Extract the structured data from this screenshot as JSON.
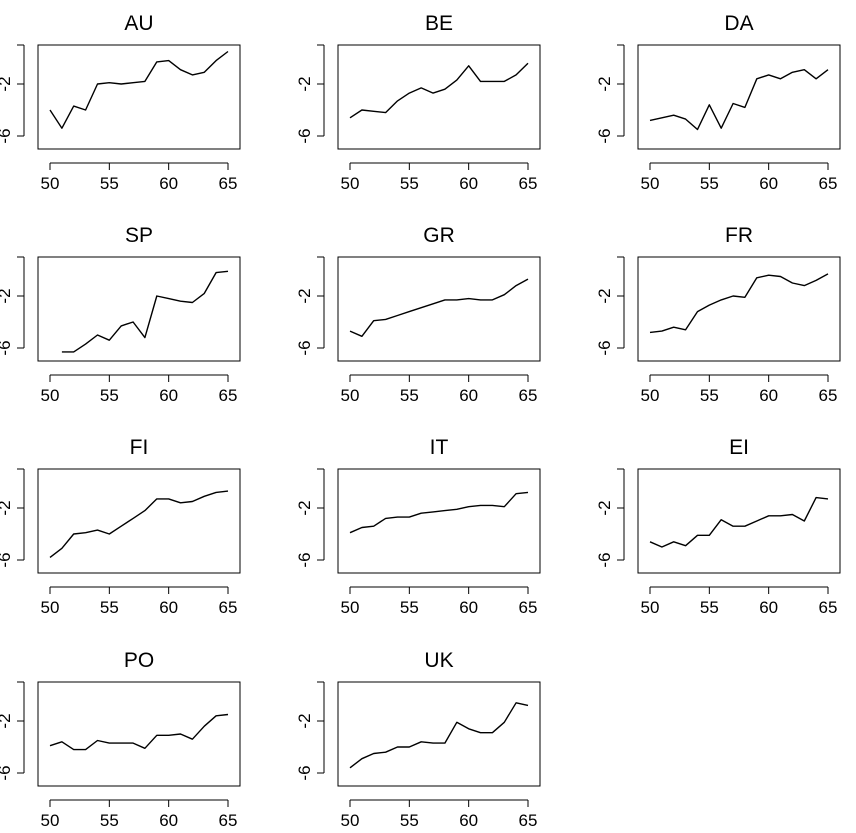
{
  "chart_data": [
    {
      "type": "line",
      "title": "AU",
      "xlim": [
        50,
        65
      ],
      "ylim": [
        -7,
        1
      ],
      "xticks": [
        50,
        55,
        60,
        65
      ],
      "yticks": [
        -6,
        -2
      ],
      "x": [
        50,
        51,
        52,
        53,
        54,
        55,
        56,
        57,
        58,
        59,
        60,
        61,
        62,
        63,
        64,
        65
      ],
      "y": [
        -4.0,
        -5.4,
        -3.7,
        -4.0,
        -2.0,
        -1.9,
        -2.0,
        -1.9,
        -1.8,
        -0.3,
        -0.2,
        -0.9,
        -1.3,
        -1.1,
        -0.2,
        0.5
      ]
    },
    {
      "type": "line",
      "title": "BE",
      "xlim": [
        50,
        65
      ],
      "ylim": [
        -7,
        1
      ],
      "xticks": [
        50,
        55,
        60,
        65
      ],
      "yticks": [
        -6,
        -2
      ],
      "x": [
        50,
        51,
        52,
        53,
        54,
        55,
        56,
        57,
        58,
        59,
        60,
        61,
        62,
        63,
        64,
        65
      ],
      "y": [
        -4.6,
        -4.0,
        -4.1,
        -4.2,
        -3.3,
        -2.7,
        -2.3,
        -2.7,
        -2.4,
        -1.7,
        -0.6,
        -1.8,
        -1.8,
        -1.8,
        -1.3,
        -0.4
      ]
    },
    {
      "type": "line",
      "title": "DA",
      "xlim": [
        50,
        65
      ],
      "ylim": [
        -7,
        1
      ],
      "xticks": [
        50,
        55,
        60,
        65
      ],
      "yticks": [
        -6,
        -2
      ],
      "x": [
        50,
        51,
        52,
        53,
        54,
        55,
        56,
        57,
        58,
        59,
        60,
        61,
        62,
        63,
        64,
        65
      ],
      "y": [
        -4.8,
        -4.6,
        -4.4,
        -4.7,
        -5.5,
        -3.6,
        -5.4,
        -3.5,
        -3.8,
        -1.6,
        -1.3,
        -1.6,
        -1.1,
        -0.9,
        -1.6,
        -0.9
      ]
    },
    {
      "type": "line",
      "title": "SP",
      "xlim": [
        50,
        65
      ],
      "ylim": [
        -7,
        1
      ],
      "xticks": [
        50,
        55,
        60,
        65
      ],
      "yticks": [
        -6,
        -2
      ],
      "x": [
        51,
        52,
        53,
        54,
        55,
        56,
        57,
        58,
        59,
        60,
        61,
        62,
        63,
        64,
        65
      ],
      "y": [
        -6.3,
        -6.3,
        -5.7,
        -5.0,
        -5.4,
        -4.3,
        -4.0,
        -5.2,
        -2.0,
        -2.2,
        -2.4,
        -2.5,
        -1.8,
        -0.2,
        -0.1
      ]
    },
    {
      "type": "line",
      "title": "GR",
      "xlim": [
        50,
        65
      ],
      "ylim": [
        -7,
        1
      ],
      "xticks": [
        50,
        55,
        60,
        65
      ],
      "yticks": [
        -6,
        -2
      ],
      "x": [
        50,
        51,
        52,
        53,
        54,
        55,
        56,
        57,
        58,
        59,
        60,
        61,
        62,
        63,
        64,
        65
      ],
      "y": [
        -4.7,
        -5.1,
        -3.9,
        -3.8,
        -3.5,
        -3.2,
        -2.9,
        -2.6,
        -2.3,
        -2.3,
        -2.2,
        -2.3,
        -2.3,
        -1.9,
        -1.2,
        -0.7
      ]
    },
    {
      "type": "line",
      "title": "FR",
      "xlim": [
        50,
        65
      ],
      "ylim": [
        -7,
        1
      ],
      "xticks": [
        50,
        55,
        60,
        65
      ],
      "yticks": [
        -6,
        -2
      ],
      "x": [
        50,
        51,
        52,
        53,
        54,
        55,
        56,
        57,
        58,
        59,
        60,
        61,
        62,
        63,
        64,
        65
      ],
      "y": [
        -4.8,
        -4.7,
        -4.4,
        -4.6,
        -3.2,
        -2.7,
        -2.3,
        -2.0,
        -2.1,
        -0.6,
        -0.4,
        -0.5,
        -1.0,
        -1.2,
        -0.8,
        -0.3
      ]
    },
    {
      "type": "line",
      "title": "FI",
      "xlim": [
        50,
        65
      ],
      "ylim": [
        -7,
        1
      ],
      "xticks": [
        50,
        55,
        60,
        65
      ],
      "yticks": [
        -6,
        -2
      ],
      "x": [
        50,
        51,
        52,
        53,
        54,
        55,
        56,
        57,
        58,
        59,
        60,
        61,
        62,
        63,
        64,
        65
      ],
      "y": [
        -5.8,
        -5.1,
        -4.0,
        -3.9,
        -3.7,
        -4.0,
        -3.4,
        -2.8,
        -2.2,
        -1.3,
        -1.3,
        -1.6,
        -1.5,
        -1.1,
        -0.8,
        -0.7
      ]
    },
    {
      "type": "line",
      "title": "IT",
      "xlim": [
        50,
        65
      ],
      "ylim": [
        -7,
        1
      ],
      "xticks": [
        50,
        55,
        60,
        65
      ],
      "yticks": [
        -6,
        -2
      ],
      "x": [
        50,
        51,
        52,
        53,
        54,
        55,
        56,
        57,
        58,
        59,
        60,
        61,
        62,
        63,
        64,
        65
      ],
      "y": [
        -3.9,
        -3.5,
        -3.4,
        -2.8,
        -2.7,
        -2.7,
        -2.4,
        -2.3,
        -2.2,
        -2.1,
        -1.9,
        -1.8,
        -1.8,
        -1.9,
        -0.9,
        -0.8
      ]
    },
    {
      "type": "line",
      "title": "EI",
      "xlim": [
        50,
        65
      ],
      "ylim": [
        -7,
        1
      ],
      "xticks": [
        50,
        55,
        60,
        65
      ],
      "yticks": [
        -6,
        -2
      ],
      "x": [
        50,
        51,
        52,
        53,
        54,
        55,
        56,
        57,
        58,
        59,
        60,
        61,
        62,
        63,
        64,
        65
      ],
      "y": [
        -4.6,
        -5.0,
        -4.6,
        -4.9,
        -4.1,
        -4.1,
        -2.9,
        -3.4,
        -3.4,
        -3.0,
        -2.6,
        -2.6,
        -2.5,
        -3.0,
        -1.2,
        -1.3
      ]
    },
    {
      "type": "line",
      "title": "PO",
      "xlim": [
        50,
        65
      ],
      "ylim": [
        -7,
        1
      ],
      "xticks": [
        50,
        55,
        60,
        65
      ],
      "yticks": [
        -6,
        -2
      ],
      "x": [
        50,
        51,
        52,
        53,
        54,
        55,
        56,
        57,
        58,
        59,
        60,
        61,
        62,
        63,
        64,
        65
      ],
      "y": [
        -3.9,
        -3.6,
        -4.2,
        -4.2,
        -3.5,
        -3.7,
        -3.7,
        -3.7,
        -4.1,
        -3.1,
        -3.1,
        -3.0,
        -3.4,
        -2.4,
        -1.6,
        -1.5
      ]
    },
    {
      "type": "line",
      "title": "UK",
      "xlim": [
        50,
        65
      ],
      "ylim": [
        -7,
        1
      ],
      "xticks": [
        50,
        55,
        60,
        65
      ],
      "yticks": [
        -6,
        -2
      ],
      "x": [
        50,
        51,
        52,
        53,
        54,
        55,
        56,
        57,
        58,
        59,
        60,
        61,
        62,
        63,
        64,
        65
      ],
      "y": [
        -5.6,
        -4.9,
        -4.5,
        -4.4,
        -4.0,
        -4.0,
        -3.6,
        -3.7,
        -3.7,
        -2.1,
        -2.6,
        -2.9,
        -2.9,
        -2.1,
        -0.6,
        -0.8
      ]
    }
  ]
}
